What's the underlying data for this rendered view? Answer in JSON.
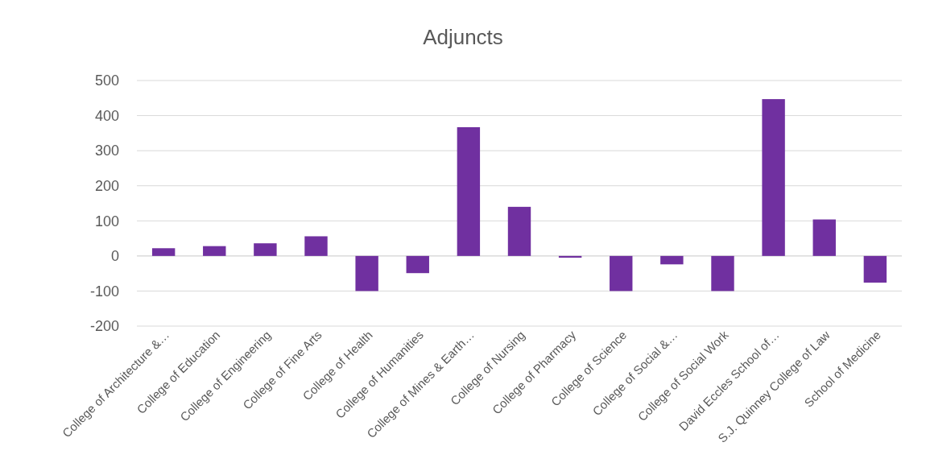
{
  "chart_data": {
    "type": "bar",
    "title": "Adjuncts",
    "categories": [
      "College of Architecture &…",
      "College of Education",
      "College of Engineering",
      "College of Fine Arts",
      "College of Health",
      "College of Humanities",
      "College of Mines & Earth…",
      "College of Nursing",
      "College of Pharmacy",
      "College of Science",
      "College of Social &…",
      "College of Social Work",
      "David Eccles School of…",
      "S.J. Quinney College of Law",
      "School of Medicine"
    ],
    "values": [
      22,
      28,
      36,
      56,
      -100,
      -49,
      367,
      140,
      -5,
      -100,
      -24,
      -100,
      447,
      104,
      -76
    ],
    "color": "#7030a0",
    "ylim": [
      -200,
      500
    ],
    "yticks": [
      -200,
      -100,
      0,
      100,
      200,
      300,
      400,
      500
    ],
    "grid": "y"
  }
}
